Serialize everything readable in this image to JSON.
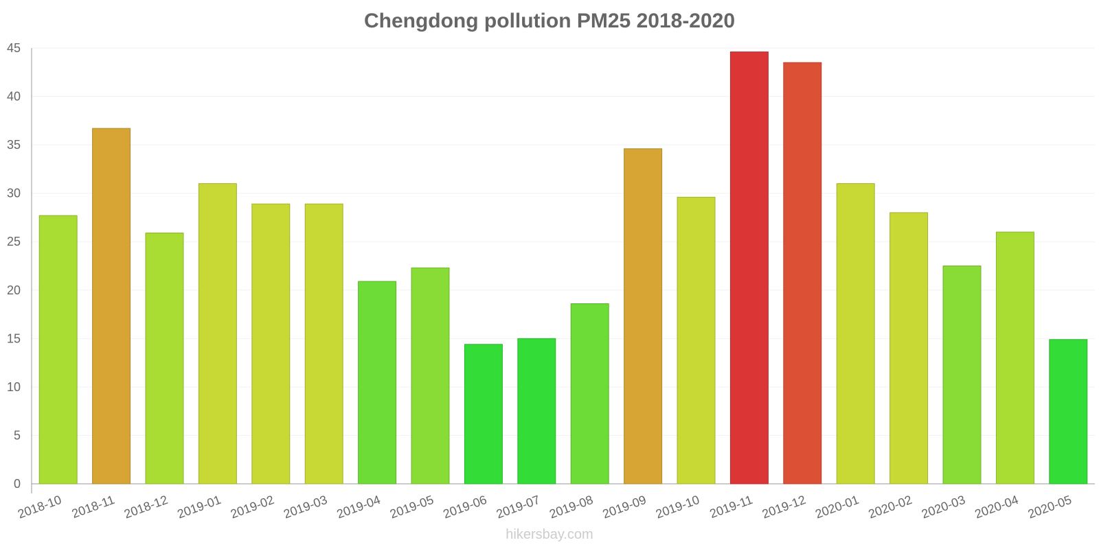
{
  "chart_data": {
    "type": "bar",
    "title": "Chengdong pollution PM25 2018-2020",
    "xlabel": "",
    "ylabel": "",
    "ylim": [
      0,
      45
    ],
    "yticks": [
      0,
      5,
      10,
      15,
      20,
      25,
      30,
      35,
      40,
      45
    ],
    "grid": true,
    "categories": [
      "2018-10",
      "2018-11",
      "2018-12",
      "2019-01",
      "2019-02",
      "2019-03",
      "2019-04",
      "2019-05",
      "2019-06",
      "2019-07",
      "2019-08",
      "2019-09",
      "2019-10",
      "2019-11",
      "2019-12",
      "2020-01",
      "2020-02",
      "2020-03",
      "2020-04",
      "2020-05"
    ],
    "values": [
      27.7,
      36.7,
      25.9,
      31.0,
      28.9,
      28.9,
      20.9,
      22.3,
      14.4,
      15.0,
      18.6,
      34.6,
      29.6,
      44.6,
      43.5,
      31.0,
      28.0,
      22.5,
      26.0,
      14.9
    ],
    "colors": [
      "#aadd33",
      "#d6a534",
      "#aadd33",
      "#c8d835",
      "#c8d835",
      "#c8d835",
      "#6ddc36",
      "#88dc35",
      "#33dc36",
      "#33dc36",
      "#6ddc36",
      "#d6a534",
      "#c8d835",
      "#dc3535",
      "#dc5035",
      "#c8d835",
      "#c8d835",
      "#88dc35",
      "#aadd33",
      "#33dc36"
    ]
  },
  "watermark": "hikersbay.com"
}
